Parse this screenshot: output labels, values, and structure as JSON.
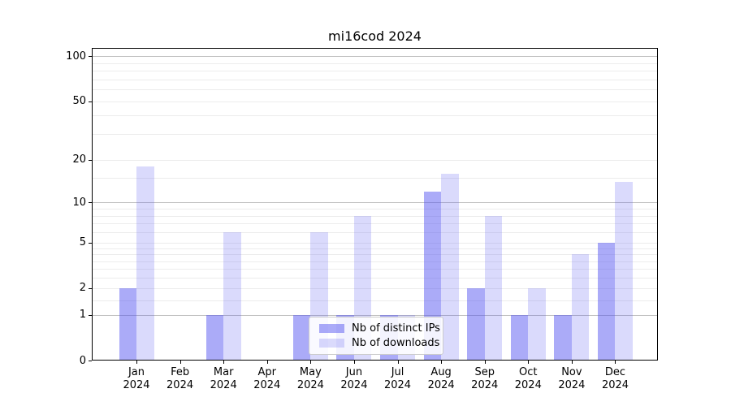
{
  "chart_data": {
    "type": "bar",
    "title": "mi16cod 2024",
    "categories": [
      "Jan",
      "Feb",
      "Mar",
      "Apr",
      "May",
      "Jun",
      "Jul",
      "Aug",
      "Sep",
      "Oct",
      "Nov",
      "Dec"
    ],
    "x_year_label": "2024",
    "series": [
      {
        "name": "Nb of distinct IPs",
        "color": "rgba(80,80,240,0.48)",
        "values": [
          2,
          0,
          1,
          0,
          1,
          1,
          1,
          12,
          2,
          1,
          1,
          5
        ]
      },
      {
        "name": "Nb of downloads",
        "color": "rgba(80,80,240,0.21)",
        "values": [
          18,
          0,
          6,
          0,
          6,
          8,
          1,
          16,
          8,
          2,
          4,
          14
        ]
      }
    ],
    "y_axis": {
      "scale": "log1p",
      "ticks": [
        0,
        1,
        2,
        5,
        10,
        20,
        50,
        100
      ],
      "max": 113.6,
      "gridlines_major": [
        1,
        10,
        100
      ],
      "gridlines_minor": [
        1.5,
        2,
        2.5,
        3,
        3.5,
        4,
        4.5,
        5,
        6,
        7,
        8,
        9,
        15,
        20,
        30,
        40,
        50,
        60,
        70,
        80,
        90
      ]
    },
    "legend": {
      "position": "lower center",
      "entries": [
        "Nb of distinct IPs",
        "Nb of downloads"
      ]
    }
  },
  "colors": {
    "bar_distinct_ips": "rgba(80,80,240,0.48)",
    "bar_downloads": "rgba(80,80,240,0.21)",
    "grid_major": "#c0c0c0",
    "grid_minor": "#ececec",
    "axis_frame": "#000000",
    "legend_border": "#cccccc",
    "text": "#000000",
    "background": "#ffffff"
  }
}
